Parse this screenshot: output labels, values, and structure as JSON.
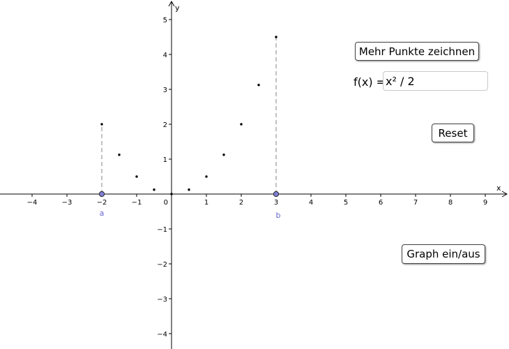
{
  "axes": {
    "x_label": "x",
    "y_label": "y",
    "origin_label": "0",
    "x_ticks": [
      -4,
      -3,
      -2,
      -1,
      1,
      2,
      3,
      4,
      5,
      6,
      7,
      8,
      9
    ],
    "y_ticks": [
      -4,
      -3,
      -2,
      -1,
      1,
      2,
      3,
      4,
      5
    ]
  },
  "points": [
    {
      "x": -2,
      "y": 2
    },
    {
      "x": -1.5,
      "y": 1.125
    },
    {
      "x": -1,
      "y": 0.5
    },
    {
      "x": -0.5,
      "y": 0.125
    },
    {
      "x": 0,
      "y": 0
    },
    {
      "x": 0.5,
      "y": 0.125
    },
    {
      "x": 1,
      "y": 0.5
    },
    {
      "x": 1.5,
      "y": 1.125
    },
    {
      "x": 2,
      "y": 2
    },
    {
      "x": 2.5,
      "y": 3.125
    },
    {
      "x": 3,
      "y": 4.5
    }
  ],
  "slider_points": [
    {
      "name": "a",
      "x": -2
    },
    {
      "name": "b",
      "x": 3
    }
  ],
  "colors": {
    "axis": "#000000",
    "point": "#000000",
    "slider_fill": "#7f7fd8",
    "slider_label": "#6666cc",
    "dashed_line": "#a0a0a0"
  },
  "controls": {
    "more_points_button": "Mehr Punkte zeichnen",
    "function_label": "f(x) =",
    "function_value": "x² / 2",
    "reset_button": "Reset",
    "graph_toggle_button": "Graph ein/aus"
  }
}
